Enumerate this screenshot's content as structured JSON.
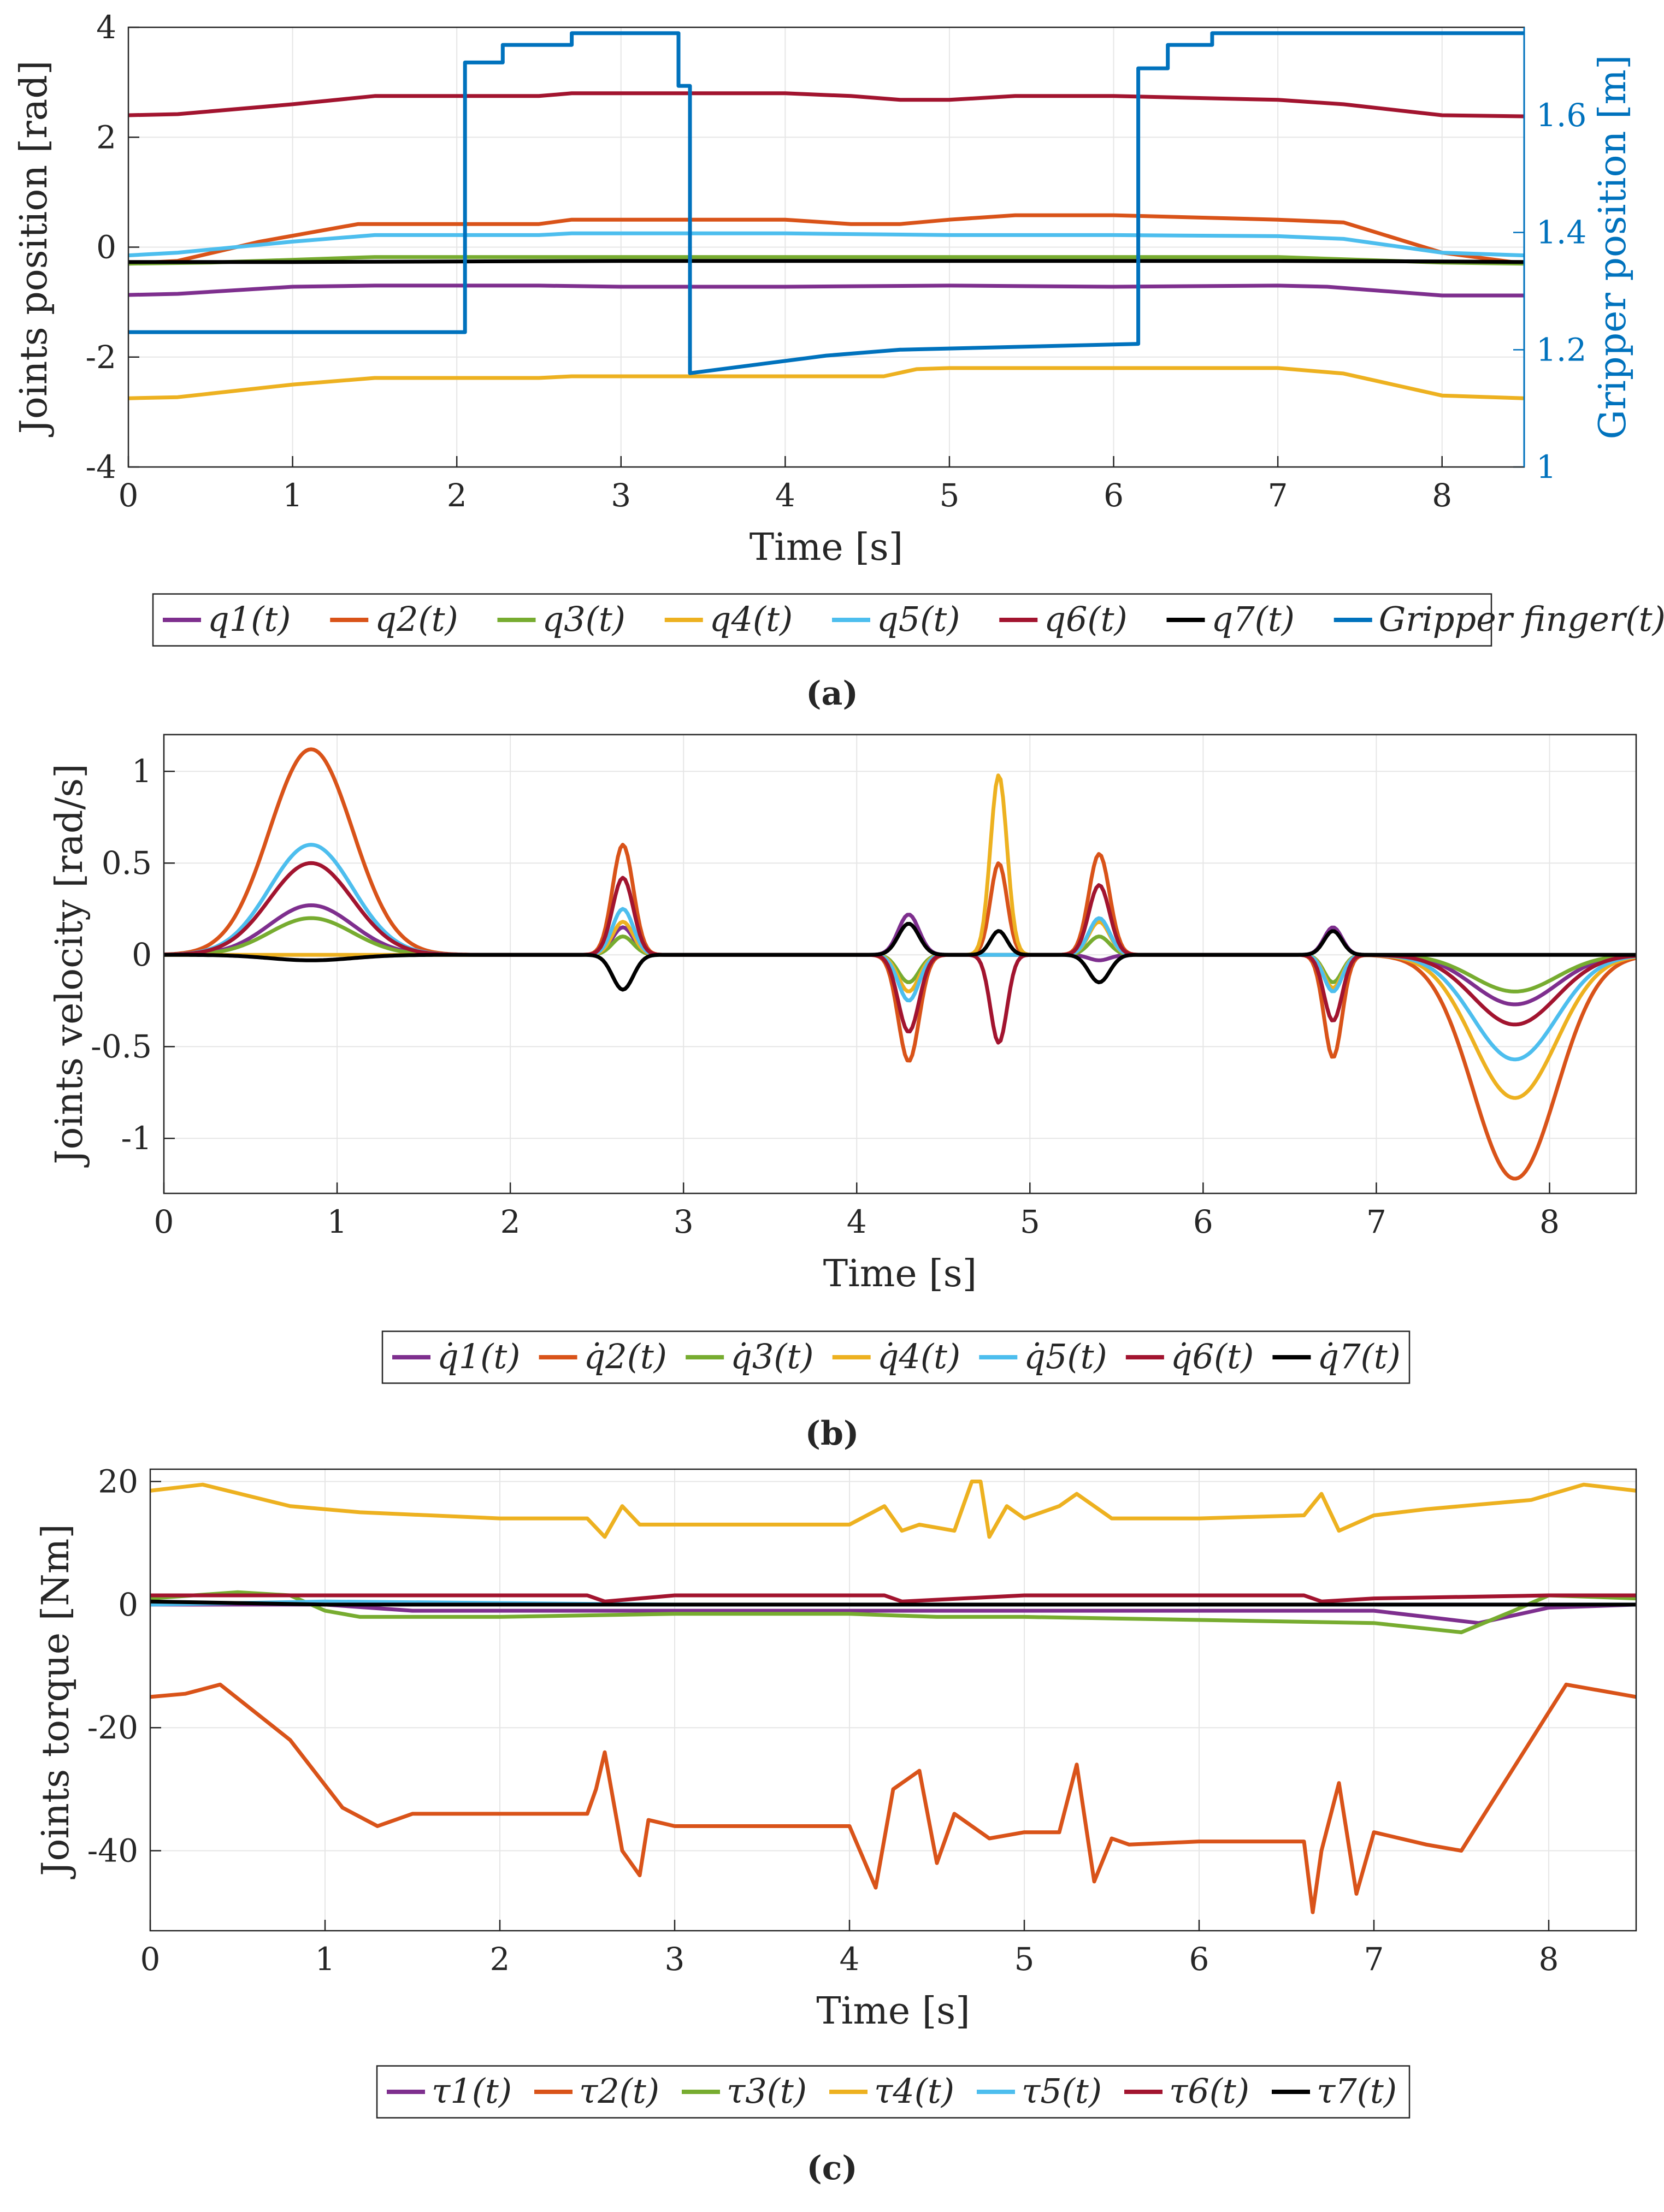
{
  "figure": {
    "colors": {
      "q1": "#7E2F8E",
      "q2": "#D95319",
      "q3": "#77AC30",
      "q4": "#EDB120",
      "q5": "#4DBEEE",
      "q6": "#A2142F",
      "q7": "#000000",
      "gripper": "#0072BD"
    }
  },
  "chart_data": [
    {
      "type": "line",
      "caption": "(a)",
      "xlabel": "Time [s]",
      "ylabel": "Joints position [rad]",
      "ylabel_right": "Gripper position [m]",
      "xlim": [
        0,
        8.5
      ],
      "ylim": [
        -4,
        4
      ],
      "ylim_right": [
        1,
        1.75
      ],
      "xticks": [
        "0",
        "1",
        "2",
        "3",
        "4",
        "5",
        "6",
        "7",
        "8"
      ],
      "yticks": [
        "4",
        "2",
        "0",
        "-2",
        "-4"
      ],
      "yticks_right": [
        "1.6",
        "1.4",
        "1.2",
        "1"
      ],
      "grid": true,
      "legend": [
        "q1(t)",
        "q2(t)",
        "q3(t)",
        "q4(t)",
        "q5(t)",
        "q6(t)",
        "q7(t)",
        "Gripper finger(t)"
      ],
      "legend_placement": "below",
      "series": [
        {
          "name": "q1(t)",
          "x": [
            0,
            0.3,
            1,
            1.5,
            2.5,
            3,
            4,
            5,
            6,
            7,
            7.3,
            8,
            8.5
          ],
          "y": [
            -0.87,
            -0.85,
            -0.72,
            -0.7,
            -0.7,
            -0.72,
            -0.72,
            -0.7,
            -0.72,
            -0.7,
            -0.72,
            -0.88,
            -0.88
          ]
        },
        {
          "name": "q2(t)",
          "x": [
            0,
            0.3,
            0.8,
            1.4,
            2.5,
            2.7,
            3,
            4,
            4.4,
            4.7,
            5,
            5.4,
            6,
            7,
            7.4,
            8,
            8.5
          ],
          "y": [
            -0.3,
            -0.25,
            0.1,
            0.42,
            0.42,
            0.5,
            0.5,
            0.5,
            0.42,
            0.42,
            0.5,
            0.58,
            0.58,
            0.5,
            0.45,
            -0.1,
            -0.3
          ]
        },
        {
          "name": "q3(t)",
          "x": [
            0,
            0.5,
            1.5,
            7,
            8,
            8.5
          ],
          "y": [
            -0.3,
            -0.28,
            -0.18,
            -0.18,
            -0.28,
            -0.3
          ]
        },
        {
          "name": "q4(t)",
          "x": [
            0,
            0.3,
            1,
            1.5,
            2.5,
            2.7,
            4,
            4.6,
            4.8,
            5,
            6,
            7,
            7.4,
            8,
            8.5
          ],
          "y": [
            -2.75,
            -2.73,
            -2.5,
            -2.38,
            -2.38,
            -2.35,
            -2.35,
            -2.35,
            -2.22,
            -2.2,
            -2.2,
            -2.2,
            -2.3,
            -2.7,
            -2.75
          ]
        },
        {
          "name": "q5(t)",
          "x": [
            0,
            0.3,
            1,
            1.5,
            2.5,
            2.7,
            4,
            5,
            6,
            7,
            7.4,
            8,
            8.5
          ],
          "y": [
            -0.15,
            -0.1,
            0.1,
            0.22,
            0.22,
            0.25,
            0.25,
            0.22,
            0.22,
            0.2,
            0.15,
            -0.1,
            -0.15
          ]
        },
        {
          "name": "q6(t)",
          "x": [
            0,
            0.3,
            1,
            1.5,
            2.5,
            2.7,
            4,
            4.4,
            4.7,
            5,
            5.4,
            6,
            7,
            7.4,
            8,
            8.5
          ],
          "y": [
            2.4,
            2.42,
            2.6,
            2.75,
            2.75,
            2.8,
            2.8,
            2.75,
            2.68,
            2.68,
            2.75,
            2.75,
            2.68,
            2.6,
            2.4,
            2.38
          ]
        },
        {
          "name": "q7(t)",
          "x": [
            0,
            1,
            2,
            3,
            4,
            5,
            6,
            7,
            8,
            8.5
          ],
          "y": [
            -0.27,
            -0.27,
            -0.26,
            -0.25,
            -0.25,
            -0.25,
            -0.25,
            -0.25,
            -0.26,
            -0.27
          ]
        },
        {
          "name": "Gripper finger(t)",
          "axis": "right",
          "step": true,
          "x": [
            0,
            2.05,
            2.05,
            2.28,
            2.28,
            2.7,
            2.7,
            3.35,
            3.35,
            3.42,
            3.42,
            4.25,
            4.25,
            4.7,
            4.7,
            6.15,
            6.15,
            6.33,
            6.33,
            6.6,
            6.6,
            8.5
          ],
          "y": [
            1.23,
            1.23,
            1.69,
            1.69,
            1.72,
            1.72,
            1.74,
            1.74,
            1.65,
            1.65,
            1.16,
            1.19,
            1.19,
            1.2,
            1.2,
            1.21,
            1.68,
            1.68,
            1.72,
            1.72,
            1.74,
            1.74
          ]
        }
      ]
    },
    {
      "type": "line",
      "caption": "(b)",
      "xlabel": "Time [s]",
      "ylabel": "Joints velocity [rad/s]",
      "xlim": [
        0,
        8.5
      ],
      "ylim": [
        -1.3,
        1.2
      ],
      "xticks": [
        "0",
        "1",
        "2",
        "3",
        "4",
        "5",
        "6",
        "7",
        "8"
      ],
      "yticks": [
        "1",
        "0.5",
        "0",
        "-0.5",
        "-1"
      ],
      "grid": true,
      "legend": [
        "q̇1(t)",
        "q̇2(t)",
        "q̇3(t)",
        "q̇4(t)",
        "q̇5(t)",
        "q̇6(t)",
        "q̇7(t)"
      ],
      "legend_placement": "below",
      "bumps": [
        {
          "name": "q̇1(t)",
          "events": [
            [
              0.85,
              0.6,
              0.27
            ],
            [
              2.65,
              0.15,
              0.15
            ],
            [
              4.3,
              0.15,
              0.22
            ],
            [
              5.4,
              0.15,
              -0.03
            ],
            [
              6.75,
              0.13,
              0.15
            ],
            [
              7.8,
              0.6,
              -0.27
            ]
          ]
        },
        {
          "name": "q̇2(t)",
          "events": [
            [
              0.85,
              0.6,
              1.12
            ],
            [
              2.65,
              0.15,
              0.6
            ],
            [
              4.3,
              0.15,
              -0.58
            ],
            [
              4.82,
              0.12,
              0.5
            ],
            [
              5.4,
              0.15,
              0.55
            ],
            [
              6.75,
              0.13,
              -0.56
            ],
            [
              7.8,
              0.6,
              -1.22
            ]
          ]
        },
        {
          "name": "q̇3(t)",
          "events": [
            [
              0.85,
              0.6,
              0.2
            ],
            [
              2.65,
              0.15,
              0.1
            ],
            [
              4.3,
              0.15,
              -0.15
            ],
            [
              5.4,
              0.15,
              0.1
            ],
            [
              6.75,
              0.13,
              -0.15
            ],
            [
              7.8,
              0.6,
              -0.2
            ]
          ]
        },
        {
          "name": "q̇4(t)",
          "events": [
            [
              2.65,
              0.15,
              0.18
            ],
            [
              4.3,
              0.15,
              -0.2
            ],
            [
              4.82,
              0.12,
              0.98
            ],
            [
              5.4,
              0.15,
              0.18
            ],
            [
              6.75,
              0.13,
              -0.18
            ],
            [
              7.8,
              0.6,
              -0.78
            ]
          ]
        },
        {
          "name": "q̇5(t)",
          "events": [
            [
              0.85,
              0.6,
              0.6
            ],
            [
              2.65,
              0.15,
              0.25
            ],
            [
              4.3,
              0.15,
              -0.25
            ],
            [
              5.4,
              0.15,
              0.2
            ],
            [
              6.75,
              0.13,
              -0.2
            ],
            [
              7.8,
              0.6,
              -0.57
            ]
          ]
        },
        {
          "name": "q̇6(t)",
          "events": [
            [
              0.85,
              0.6,
              0.5
            ],
            [
              2.65,
              0.15,
              0.42
            ],
            [
              4.3,
              0.15,
              -0.42
            ],
            [
              4.82,
              0.12,
              -0.48
            ],
            [
              5.4,
              0.15,
              0.38
            ],
            [
              6.75,
              0.13,
              -0.36
            ],
            [
              7.8,
              0.6,
              -0.38
            ]
          ]
        },
        {
          "name": "q̇7(t)",
          "events": [
            [
              0.85,
              0.6,
              -0.03
            ],
            [
              2.65,
              0.15,
              -0.19
            ],
            [
              4.3,
              0.15,
              0.17
            ],
            [
              4.82,
              0.12,
              0.13
            ],
            [
              5.4,
              0.15,
              -0.15
            ],
            [
              6.75,
              0.13,
              0.13
            ]
          ]
        }
      ]
    },
    {
      "type": "line",
      "caption": "(c)",
      "xlabel": "Time [s]",
      "ylabel": "Joints torque [Nm]",
      "xlim": [
        0,
        8.5
      ],
      "ylim": [
        -53,
        22
      ],
      "xticks": [
        "0",
        "1",
        "2",
        "3",
        "4",
        "5",
        "6",
        "7",
        "8"
      ],
      "yticks": [
        "20",
        "0",
        "-20",
        "-40"
      ],
      "grid": true,
      "legend": [
        "τ1(t)",
        "τ2(t)",
        "τ3(t)",
        "τ4(t)",
        "τ5(t)",
        "τ6(t)",
        "τ7(t)"
      ],
      "legend_placement": "below",
      "series": [
        {
          "name": "τ1(t)",
          "x": [
            0,
            1,
            1.5,
            3,
            4,
            5,
            6,
            7,
            7.3,
            7.6,
            8,
            8.5
          ],
          "y": [
            0,
            0,
            -1,
            -1,
            -1,
            -1,
            -1,
            -1,
            -2,
            -3,
            -0.5,
            0
          ]
        },
        {
          "name": "τ2(t)",
          "x": [
            0,
            0.2,
            0.4,
            0.8,
            1.1,
            1.3,
            1.5,
            2.5,
            2.55,
            2.6,
            2.7,
            2.8,
            2.85,
            3,
            4,
            4.15,
            4.25,
            4.4,
            4.5,
            4.6,
            4.8,
            5,
            5.2,
            5.3,
            5.4,
            5.5,
            5.6,
            6,
            6.6,
            6.65,
            6.7,
            6.8,
            6.9,
            7,
            7.3,
            7.5,
            7.9,
            8.1,
            8.5
          ],
          "y": [
            -15,
            -14.5,
            -13,
            -22,
            -33,
            -36,
            -34,
            -34,
            -30,
            -24,
            -40,
            -44,
            -35,
            -36,
            -36,
            -46,
            -30,
            -27,
            -42,
            -34,
            -38,
            -37,
            -37,
            -26,
            -45,
            -38,
            -39,
            -38.5,
            -38.5,
            -50,
            -40,
            -29,
            -47,
            -37,
            -39,
            -40,
            -22,
            -13,
            -15
          ]
        },
        {
          "name": "τ3(t)",
          "x": [
            0,
            0.5,
            0.8,
            1,
            1.2,
            2,
            3,
            4,
            4.5,
            5,
            6,
            7,
            7.5,
            7.8,
            8,
            8.5
          ],
          "y": [
            1,
            2,
            1.5,
            -1,
            -2,
            -2,
            -1.5,
            -1.5,
            -2,
            -2,
            -2.5,
            -3,
            -4.5,
            -1,
            1.5,
            1
          ]
        },
        {
          "name": "τ4(t)",
          "x": [
            0,
            0.3,
            0.8,
            1.2,
            2,
            2.5,
            2.6,
            2.7,
            2.8,
            3,
            4,
            4.2,
            4.3,
            4.4,
            4.6,
            4.7,
            4.75,
            4.8,
            4.9,
            5,
            5.2,
            5.3,
            5.5,
            6,
            6.6,
            6.7,
            6.8,
            7,
            7.3,
            7.9,
            8.2,
            8.5
          ],
          "y": [
            18.5,
            19.5,
            16,
            15,
            14,
            14,
            11,
            16,
            13,
            13,
            13,
            16,
            12,
            13,
            12,
            20,
            20,
            11,
            16,
            14,
            16,
            18,
            14,
            14,
            14.5,
            18,
            12,
            14.5,
            15.5,
            17,
            19.5,
            18.5
          ]
        },
        {
          "name": "τ5(t)",
          "x": [
            0,
            1,
            3,
            5,
            7,
            8,
            8.5
          ],
          "y": [
            0,
            0.5,
            0,
            0,
            0,
            0,
            0
          ]
        },
        {
          "name": "τ6(t)",
          "x": [
            0,
            1,
            2.5,
            2.6,
            3,
            4.2,
            4.3,
            5,
            6.6,
            6.7,
            7,
            8,
            8.5
          ],
          "y": [
            1.5,
            1.5,
            1.5,
            0.5,
            1.5,
            1.5,
            0.5,
            1.5,
            1.5,
            0.5,
            1,
            1.5,
            1.5
          ]
        },
        {
          "name": "τ7(t)",
          "x": [
            0,
            1,
            2,
            3,
            4,
            5,
            6,
            7,
            8,
            8.5
          ],
          "y": [
            0.5,
            0,
            0,
            0,
            0,
            0,
            0,
            0,
            0,
            0
          ]
        }
      ]
    }
  ]
}
